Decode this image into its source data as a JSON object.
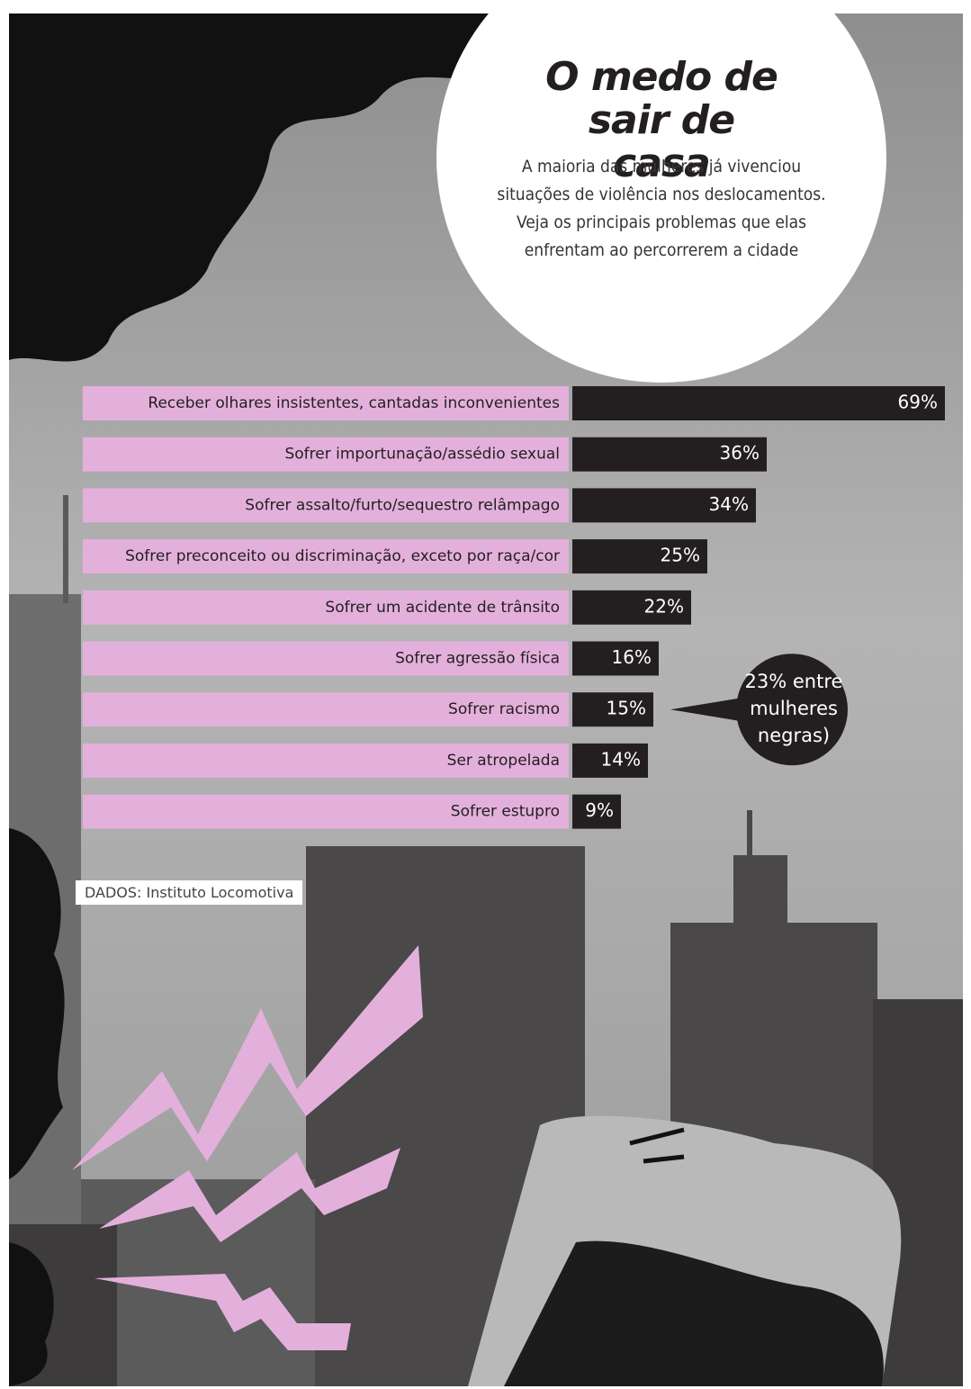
{
  "chart_data": {
    "type": "bar",
    "orientation": "horizontal",
    "title": "O medo de sair de casa",
    "subtitle": "A maioria das mulheres já vivenciou situações de violência nos deslocamentos. Veja os principais problemas que elas enfrentam ao percorrerem a cidade",
    "categories": [
      "Receber olhares insistentes, cantadas inconvenientes",
      "Sofrer importunação/assédio sexual",
      "Sofrer assalto/furto/sequestro relâmpago",
      "Sofrer preconceito ou discriminação, exceto por raça/cor",
      "Sofrer um acidente de trânsito",
      "Sofrer agressão física",
      "Sofrer racismo",
      "Ser atropelada",
      "Sofrer estupro"
    ],
    "values": [
      69,
      36,
      34,
      25,
      22,
      16,
      15,
      14,
      9
    ],
    "value_labels": [
      "69%",
      "36%",
      "34%",
      "25%",
      "22%",
      "16%",
      "15%",
      "14%",
      "9%"
    ],
    "color": "#231f20",
    "label_background": "#e3b0dc",
    "annotation": {
      "category_index": 6,
      "text": "23% entre mulheres negras)"
    },
    "source": "DADOS: Instituto Locomotiva"
  }
}
